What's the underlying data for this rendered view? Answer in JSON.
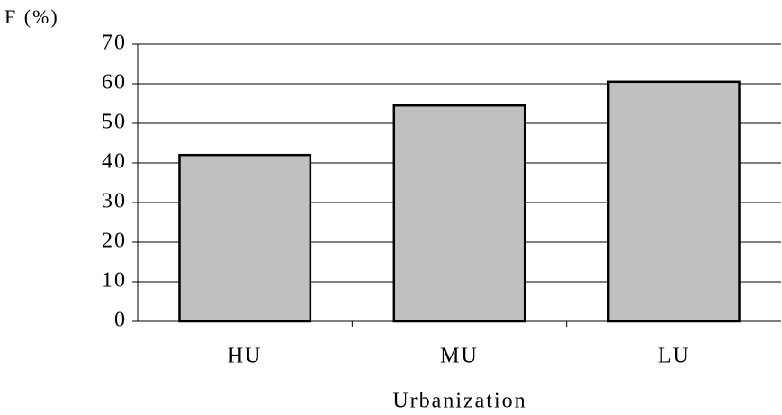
{
  "chart_data": {
    "type": "bar",
    "y_label": "F (%)",
    "x_label": "Urbanization",
    "categories": [
      "HU",
      "MU",
      "LU"
    ],
    "values": [
      42,
      54.5,
      60.5
    ],
    "color": "#c0c0c0",
    "ylim": [
      0,
      70
    ],
    "yticks": [
      0,
      10,
      20,
      30,
      40,
      50,
      60,
      70
    ],
    "grid": true
  }
}
